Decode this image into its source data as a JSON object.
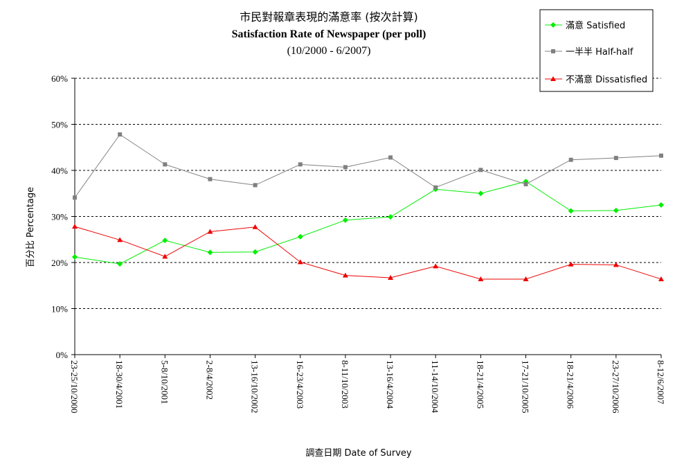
{
  "chart_data": {
    "type": "line",
    "title": "市民對報章表現的滿意率 (按次計算)",
    "subtitle": "Satisfaction Rate of Newspaper (per poll)",
    "date_range": "(10/2000 - 6/2007)",
    "xlabel": "調查日期 Date of Survey",
    "ylabel": "百分比 Percentage",
    "ylim": [
      0,
      60
    ],
    "y_ticks": [
      "0%",
      "10%",
      "20%",
      "30%",
      "40%",
      "50%",
      "60%"
    ],
    "grid": "horizontal dashed",
    "legend_position": "top-right",
    "categories": [
      "23-25/10/2000",
      "18-30/4/2001",
      "5-8/10/2001",
      "2-8/4/2002",
      "13-16/10/2002",
      "16-23/4/2003",
      "8-11/10/2003",
      "13-16/4/2004",
      "11-14/10/2004",
      "18-21/4/2005",
      "17-21/10/2005",
      "18-21/4/2006",
      "23-27/10/2006",
      "8-12/6/2007"
    ],
    "series": [
      {
        "name": "滿意 Satisfied",
        "color": "#00ee00",
        "marker": "diamond",
        "values": [
          21.2,
          19.7,
          24.8,
          22.2,
          22.3,
          25.6,
          29.2,
          29.9,
          35.9,
          35.0,
          37.6,
          31.2,
          31.3,
          32.5
        ]
      },
      {
        "name": "一半半 Half-half",
        "color": "#808080",
        "marker": "square",
        "values": [
          34.1,
          47.8,
          41.3,
          38.1,
          36.8,
          41.3,
          40.7,
          42.8,
          36.3,
          40.1,
          37.0,
          42.3,
          42.7,
          43.2
        ]
      },
      {
        "name": "不滿意 Dissatisfied",
        "color": "#ee0000",
        "marker": "triangle",
        "values": [
          27.8,
          24.9,
          21.3,
          26.7,
          27.7,
          20.1,
          17.2,
          16.7,
          19.2,
          16.4,
          16.4,
          19.6,
          19.5,
          16.4
        ]
      }
    ]
  }
}
